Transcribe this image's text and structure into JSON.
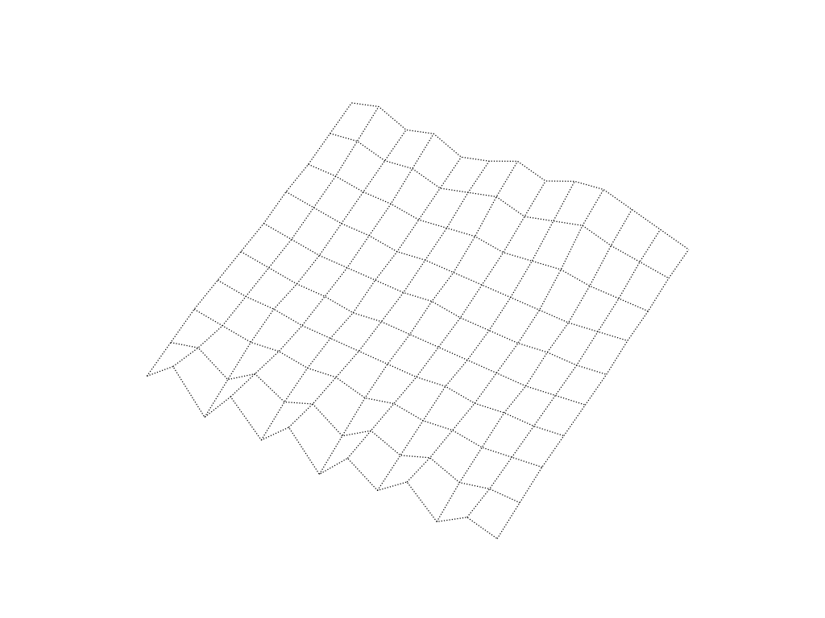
{
  "chart_data": {
    "type": "wireframe",
    "x": [
      0,
      1,
      2,
      3,
      4,
      5,
      6,
      7,
      8,
      9,
      10,
      11,
      12
    ],
    "y": [
      0,
      1,
      2,
      3,
      4,
      5,
      6,
      7,
      8,
      9
    ],
    "z": [
      [
        0.0,
        0.6,
        -0.4,
        0.5,
        -0.3,
        0.4,
        -0.5,
        0.3,
        -0.2,
        0.4,
        -0.3,
        0.2,
        0.0
      ],
      [
        0.1,
        0.3,
        -0.2,
        0.3,
        -0.1,
        0.2,
        -0.3,
        0.2,
        -0.1,
        0.2,
        -0.1,
        0.1,
        0.1
      ],
      [
        0.2,
        0.1,
        0.0,
        0.1,
        0.0,
        0.1,
        -0.1,
        0.1,
        0.0,
        0.1,
        0.0,
        0.1,
        0.2
      ],
      [
        0.2,
        0.1,
        0.1,
        0.0,
        0.0,
        0.0,
        0.0,
        0.0,
        0.1,
        0.0,
        0.1,
        0.1,
        0.2
      ],
      [
        0.2,
        0.1,
        0.0,
        0.0,
        -0.1,
        0.0,
        0.0,
        0.0,
        0.0,
        0.0,
        0.0,
        0.1,
        0.2
      ],
      [
        0.2,
        0.1,
        0.0,
        0.0,
        0.0,
        0.0,
        0.1,
        0.0,
        0.0,
        0.0,
        0.1,
        0.1,
        0.2
      ],
      [
        0.3,
        0.2,
        0.1,
        0.1,
        0.0,
        0.1,
        0.1,
        0.1,
        0.1,
        0.1,
        0.1,
        0.2,
        0.3
      ],
      [
        0.3,
        0.3,
        0.2,
        0.2,
        0.1,
        0.2,
        0.3,
        0.2,
        0.3,
        0.4,
        0.3,
        0.3,
        0.3
      ],
      [
        0.4,
        0.5,
        0.3,
        0.4,
        0.2,
        0.4,
        0.6,
        0.4,
        0.6,
        0.8,
        0.6,
        0.5,
        0.4
      ],
      [
        0.5,
        0.7,
        0.4,
        0.6,
        0.3,
        0.5,
        0.8,
        0.6,
        0.9,
        1.0,
        0.8,
        0.6,
        0.4
      ]
    ],
    "xlim": [
      0,
      12
    ],
    "ylim": [
      0,
      9
    ],
    "zlim": [
      -2,
      3
    ],
    "color": "#000000",
    "line_style": "dotted",
    "tick_labels": false,
    "grid": false
  }
}
